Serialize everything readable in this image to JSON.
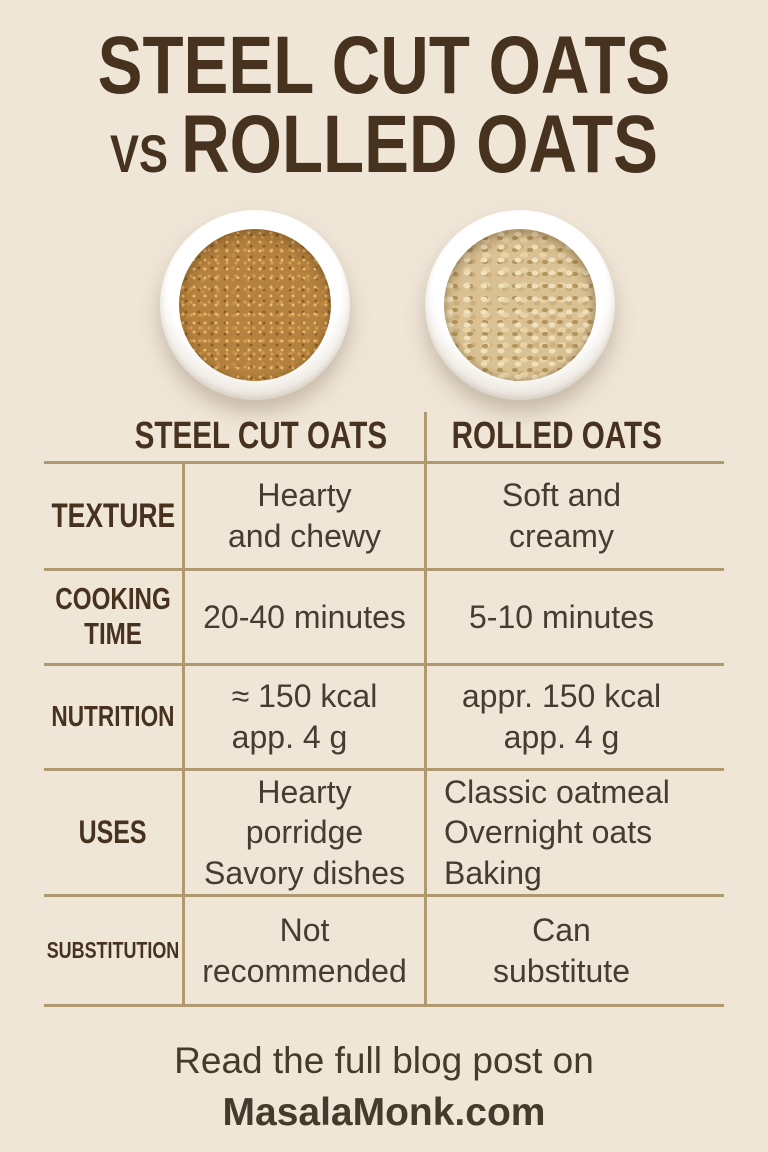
{
  "colors": {
    "background": "#f0e6d8",
    "title_text": "#46321f",
    "body_text": "#463c30",
    "table_line": "#b1996f"
  },
  "title": {
    "line1": "STEEL CUT OATS",
    "vs": "vs",
    "line2": "ROLLED OATS"
  },
  "bowls": {
    "left": "steel-cut-oats-photo",
    "right": "rolled-oats-photo"
  },
  "table": {
    "column_headers": {
      "steel_cut": "STEEL CUT OATS",
      "rolled": "ROLLED OATS"
    },
    "rows": [
      {
        "label": "TEXTURE",
        "steel_cut": [
          "Hearty",
          "and chewy"
        ],
        "rolled": [
          "Soft and",
          "creamy"
        ]
      },
      {
        "label": [
          "COOKING",
          "TIME"
        ],
        "steel_cut": "20-40 minutes",
        "rolled": "5-10 minutes"
      },
      {
        "label": "NUTRITION",
        "steel_cut": [
          "≈ 150 kcal",
          "app. 4 g"
        ],
        "rolled": [
          "appr. 150 kcal",
          "app. 4 g"
        ]
      },
      {
        "label": "USES",
        "steel_cut": [
          "Hearty",
          "porridge",
          "Savory dishes"
        ],
        "rolled": [
          "Classic oatmeal",
          "Overnight oats",
          "Baking"
        ]
      },
      {
        "label": "SUBSTITUTION",
        "steel_cut": [
          "Not",
          "recommended"
        ],
        "rolled": [
          "Can",
          "substitute"
        ]
      }
    ]
  },
  "footer": {
    "line1": "Read the full blog post on",
    "line2": "MasalaMonk.com"
  }
}
